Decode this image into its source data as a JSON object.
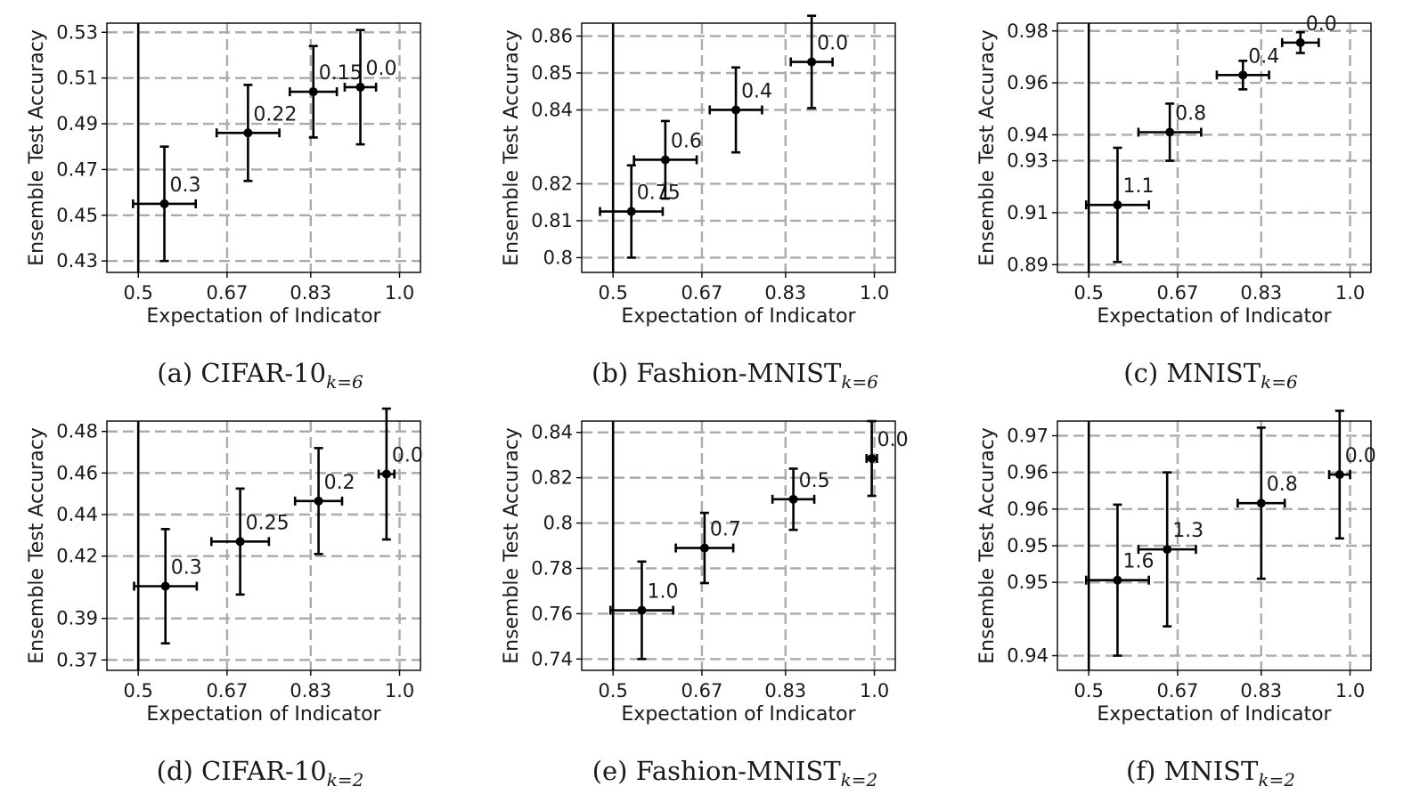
{
  "chart_data": [
    {
      "type": "scatter",
      "caption": "(a) CIFAR-10",
      "caption_sub": "k=6",
      "xlabel": "Expectation of Indicator",
      "ylabel": "Ensemble Test Accuracy",
      "xlim": [
        0.44,
        1.04
      ],
      "ylim": [
        0.425,
        0.534
      ],
      "xticks": [
        0.5,
        0.67,
        0.83,
        1.0
      ],
      "xtick_labels": [
        "0.5",
        "0.67",
        "0.83",
        "1.0"
      ],
      "yticks": [
        0.43,
        0.45,
        0.47,
        0.49,
        0.51,
        0.53
      ],
      "ytick_labels": [
        "0.43",
        "0.45",
        "0.47",
        "0.49",
        "0.51",
        "0.53"
      ],
      "vline": 0.5,
      "points": [
        {
          "label": "0.3",
          "x": 0.55,
          "y": 0.455,
          "xerr": 0.06,
          "yerr": 0.025
        },
        {
          "label": "0.22",
          "x": 0.71,
          "y": 0.486,
          "xerr": 0.06,
          "yerr": 0.021
        },
        {
          "label": "0.15",
          "x": 0.835,
          "y": 0.504,
          "xerr": 0.045,
          "yerr": 0.02
        },
        {
          "label": "0.0",
          "x": 0.925,
          "y": 0.506,
          "xerr": 0.03,
          "yerr": 0.025
        }
      ]
    },
    {
      "type": "scatter",
      "caption": "(b) Fashion-MNIST",
      "caption_sub": "k=6",
      "xlabel": "Expectation of Indicator",
      "ylabel": "Ensemble Test Accuracy",
      "xlim": [
        0.44,
        1.04
      ],
      "ylim": [
        0.796,
        0.8635
      ],
      "xticks": [
        0.5,
        0.67,
        0.83,
        1.0
      ],
      "xtick_labels": [
        "0.5",
        "0.67",
        "0.83",
        "1.0"
      ],
      "yticks": [
        0.8,
        0.81,
        0.82,
        0.84,
        0.85,
        0.86
      ],
      "ytick_labels": [
        "0.8",
        "0.81",
        "0.82",
        "0.84",
        "0.85",
        "0.86"
      ],
      "vline": 0.5,
      "points": [
        {
          "label": "0.75",
          "x": 0.535,
          "y": 0.8125,
          "xerr": 0.06,
          "yerr": 0.0125
        },
        {
          "label": "0.6",
          "x": 0.6,
          "y": 0.8265,
          "xerr": 0.06,
          "yerr": 0.0105
        },
        {
          "label": "0.4",
          "x": 0.735,
          "y": 0.84,
          "xerr": 0.05,
          "yerr": 0.0115
        },
        {
          "label": "0.0",
          "x": 0.88,
          "y": 0.853,
          "xerr": 0.04,
          "yerr": 0.0125
        }
      ]
    },
    {
      "type": "scatter",
      "caption": "(c) MNIST",
      "caption_sub": "k=6",
      "xlabel": "Expectation of Indicator",
      "ylabel": "Ensemble Test Accuracy",
      "xlim": [
        0.44,
        1.04
      ],
      "ylim": [
        0.887,
        0.983
      ],
      "xticks": [
        0.5,
        0.67,
        0.83,
        1.0
      ],
      "xtick_labels": [
        "0.5",
        "0.67",
        "0.83",
        "1.0"
      ],
      "yticks": [
        0.89,
        0.91,
        0.93,
        0.94,
        0.96,
        0.98
      ],
      "ytick_labels": [
        "0.89",
        "0.91",
        "0.93",
        "0.94",
        "0.96",
        "0.98"
      ],
      "vline": 0.5,
      "points": [
        {
          "label": "1.1",
          "x": 0.555,
          "y": 0.913,
          "xerr": 0.06,
          "yerr": 0.022
        },
        {
          "label": "0.8",
          "x": 0.655,
          "y": 0.941,
          "xerr": 0.06,
          "yerr": 0.011
        },
        {
          "label": "0.4",
          "x": 0.795,
          "y": 0.963,
          "xerr": 0.05,
          "yerr": 0.0055
        },
        {
          "label": "0.0",
          "x": 0.905,
          "y": 0.9755,
          "xerr": 0.035,
          "yerr": 0.004
        }
      ]
    },
    {
      "type": "scatter",
      "caption": "(d) CIFAR-10",
      "caption_sub": "k=2",
      "xlabel": "Expectation of Indicator",
      "ylabel": "Ensemble Test Accuracy",
      "xlim": [
        0.44,
        1.04
      ],
      "ylim": [
        0.365,
        0.485
      ],
      "xticks": [
        0.5,
        0.67,
        0.83,
        1.0
      ],
      "xtick_labels": [
        "0.5",
        "0.67",
        "0.83",
        "1.0"
      ],
      "yticks": [
        0.37,
        0.39,
        0.42,
        0.44,
        0.46,
        0.48
      ],
      "ytick_labels": [
        "0.37",
        "0.39",
        "0.42",
        "0.44",
        "0.46",
        "0.48"
      ],
      "vline": 0.5,
      "points": [
        {
          "label": "0.3",
          "x": 0.552,
          "y": 0.4055,
          "xerr": 0.06,
          "yerr": 0.0275
        },
        {
          "label": "0.25",
          "x": 0.695,
          "y": 0.427,
          "xerr": 0.055,
          "yerr": 0.0255
        },
        {
          "label": "0.2",
          "x": 0.845,
          "y": 0.4465,
          "xerr": 0.045,
          "yerr": 0.0255
        },
        {
          "label": "0.0",
          "x": 0.975,
          "y": 0.4595,
          "xerr": 0.015,
          "yerr": 0.0315
        }
      ]
    },
    {
      "type": "scatter",
      "caption": "(e) Fashion-MNIST",
      "caption_sub": "k=2",
      "xlabel": "Expectation of Indicator",
      "ylabel": "Ensemble Test Accuracy",
      "xlim": [
        0.44,
        1.04
      ],
      "ylim": [
        0.735,
        0.845
      ],
      "xticks": [
        0.5,
        0.67,
        0.83,
        1.0
      ],
      "xtick_labels": [
        "0.5",
        "0.67",
        "0.83",
        "1.0"
      ],
      "yticks": [
        0.74,
        0.76,
        0.78,
        0.8,
        0.82,
        0.84
      ],
      "ytick_labels": [
        "0.74",
        "0.76",
        "0.78",
        "0.8",
        "0.82",
        "0.84"
      ],
      "vline": 0.5,
      "points": [
        {
          "label": "1.0",
          "x": 0.555,
          "y": 0.7615,
          "xerr": 0.06,
          "yerr": 0.0215
        },
        {
          "label": "0.7",
          "x": 0.675,
          "y": 0.789,
          "xerr": 0.055,
          "yerr": 0.0155
        },
        {
          "label": "0.5",
          "x": 0.845,
          "y": 0.8105,
          "xerr": 0.04,
          "yerr": 0.0135
        },
        {
          "label": "0.0",
          "x": 0.995,
          "y": 0.8285,
          "xerr": 0.01,
          "yerr": 0.0165
        }
      ]
    },
    {
      "type": "scatter",
      "caption": "(f) MNIST",
      "caption_sub": "k=2",
      "xlabel": "Expectation of Indicator",
      "ylabel": "Ensemble Test Accuracy",
      "xlim": [
        0.44,
        1.04
      ],
      "ylim": [
        0.938,
        0.972
      ],
      "xticks": [
        0.5,
        0.67,
        0.83,
        1.0
      ],
      "xtick_labels": [
        "0.5",
        "0.67",
        "0.83",
        "1.0"
      ],
      "yticks": [
        0.94,
        0.95,
        0.955,
        0.96,
        0.965,
        0.97
      ],
      "ytick_labels": [
        "0.94",
        "0.95",
        "0.95",
        "0.96",
        "0.96",
        "0.97"
      ],
      "vline": 0.5,
      "points": [
        {
          "label": "1.6",
          "x": 0.555,
          "y": 0.9503,
          "xerr": 0.06,
          "yerr": 0.0103
        },
        {
          "label": "1.3",
          "x": 0.65,
          "y": 0.9545,
          "xerr": 0.055,
          "yerr": 0.0105
        },
        {
          "label": "0.8",
          "x": 0.83,
          "y": 0.9608,
          "xerr": 0.045,
          "yerr": 0.0103
        },
        {
          "label": "0.0",
          "x": 0.98,
          "y": 0.9647,
          "xerr": 0.02,
          "yerr": 0.0087
        }
      ]
    }
  ]
}
